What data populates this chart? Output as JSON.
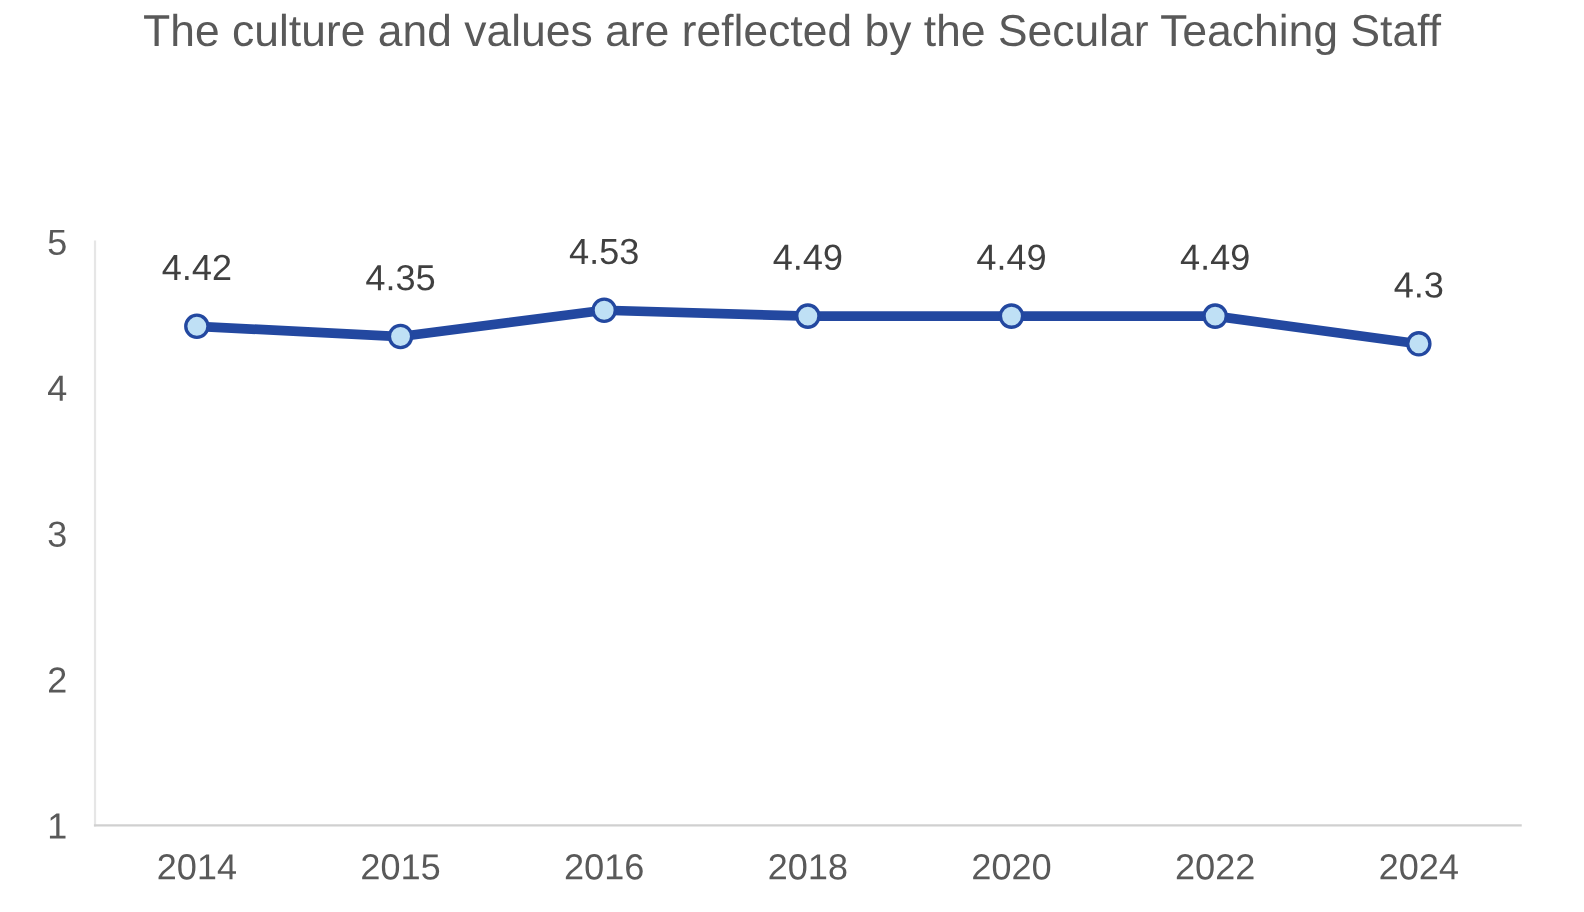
{
  "chart_data": {
    "type": "line",
    "title": "The culture and values are reflected by the Secular Teaching Staff",
    "categories": [
      "2014",
      "2015",
      "2016",
      "2018",
      "2020",
      "2022",
      "2024"
    ],
    "series": [
      {
        "color": "#2348a0",
        "values": [
          4.42,
          4.35,
          4.53,
          4.49,
          4.49,
          4.49,
          4.3
        ]
      }
    ],
    "ylim": [
      1,
      5
    ],
    "yticks": [
      1,
      2,
      3,
      4,
      5
    ],
    "grid": false,
    "legend": false,
    "marker": "circle",
    "line_style": "solid",
    "data_labels": true
  }
}
